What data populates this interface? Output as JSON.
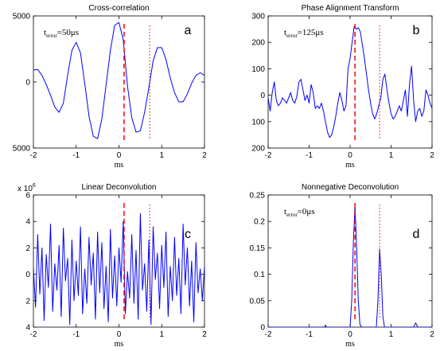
{
  "colors": {
    "signal": "#0000ff",
    "dashed_marker": "#ff0000",
    "dotted_marker": "#cc0000",
    "axis": "#000000"
  },
  "chart_data": [
    {
      "id": "a",
      "type": "line",
      "title": "Cross-correlation",
      "panel_letter": "a",
      "xlabel": "ms",
      "ylabel": "",
      "xlim": [
        -2,
        2
      ],
      "ylim": [
        -5000,
        5000
      ],
      "xticks": [
        -2,
        -1,
        0,
        1,
        2
      ],
      "yticks": [
        5000,
        0,
        -5000
      ],
      "ytick_labels": [
        "5000",
        "0",
        "5000"
      ],
      "annotation": {
        "prefix": "t",
        "sub": "error",
        "suffix": "=50μs"
      },
      "markers": {
        "dashed_x": 0.12,
        "dotted_x": 0.72
      },
      "series": [
        {
          "x": [
            -2,
            -1.9,
            -1.8,
            -1.7,
            -1.6,
            -1.5,
            -1.4,
            -1.3,
            -1.2,
            -1.1,
            -1,
            -0.9,
            -0.8,
            -0.7,
            -0.6,
            -0.5,
            -0.4,
            -0.3,
            -0.2,
            -0.1,
            0,
            0.1,
            0.2,
            0.3,
            0.4,
            0.5,
            0.6,
            0.7,
            0.8,
            0.9,
            1,
            1.1,
            1.2,
            1.3,
            1.4,
            1.5,
            1.6,
            1.7,
            1.8,
            1.9,
            2
          ],
          "y": [
            900,
            950,
            500,
            -200,
            -1000,
            -1900,
            -2300,
            -1600,
            500,
            2400,
            3000,
            2200,
            -100,
            -2600,
            -4100,
            -4300,
            -2800,
            -200,
            2400,
            4300,
            4500,
            3200,
            -300,
            -2700,
            -3800,
            -3700,
            -2300,
            -400,
            1600,
            2600,
            2600,
            1700,
            300,
            -800,
            -1500,
            -1500,
            -900,
            -100,
            500,
            700,
            500
          ]
        }
      ]
    },
    {
      "id": "b",
      "type": "line",
      "title": "Phase Alignment Transform",
      "panel_letter": "b",
      "xlabel": "ms",
      "ylabel": "",
      "xlim": [
        -2,
        2
      ],
      "ylim": [
        -200,
        300
      ],
      "xticks": [
        -2,
        -1,
        0,
        1,
        2
      ],
      "yticks": [
        300,
        200,
        100,
        0,
        -100,
        -200
      ],
      "ytick_labels": [
        "300",
        "200",
        "100",
        "0",
        "100",
        "200"
      ],
      "annotation": {
        "prefix": "t",
        "sub": "error",
        "suffix": "=125μs"
      },
      "markers": {
        "dashed_x": 0.12,
        "dotted_x": 0.72
      },
      "series": [
        {
          "x": [
            -2,
            -1.95,
            -1.9,
            -1.85,
            -1.8,
            -1.75,
            -1.7,
            -1.65,
            -1.6,
            -1.55,
            -1.5,
            -1.45,
            -1.4,
            -1.35,
            -1.3,
            -1.25,
            -1.2,
            -1.15,
            -1.1,
            -1.05,
            -1,
            -0.95,
            -0.9,
            -0.85,
            -0.8,
            -0.75,
            -0.7,
            -0.65,
            -0.6,
            -0.55,
            -0.5,
            -0.45,
            -0.4,
            -0.35,
            -0.3,
            -0.25,
            -0.2,
            -0.15,
            -0.1,
            -0.05,
            0,
            0.05,
            0.1,
            0.15,
            0.2,
            0.25,
            0.3,
            0.35,
            0.4,
            0.45,
            0.5,
            0.55,
            0.6,
            0.65,
            0.7,
            0.75,
            0.8,
            0.85,
            0.9,
            0.95,
            1,
            1.05,
            1.1,
            1.15,
            1.2,
            1.25,
            1.3,
            1.35,
            1.4,
            1.45,
            1.5,
            1.55,
            1.6,
            1.65,
            1.7,
            1.75,
            1.8,
            1.85,
            1.9,
            1.95,
            2
          ],
          "y": [
            -10,
            -60,
            10,
            50,
            -20,
            -40,
            -30,
            -10,
            -20,
            -30,
            -10,
            10,
            -20,
            -30,
            -5,
            50,
            60,
            20,
            -20,
            0,
            -30,
            40,
            10,
            -50,
            -40,
            -50,
            -30,
            -60,
            -100,
            -140,
            -160,
            -150,
            -120,
            -80,
            -30,
            10,
            -20,
            -60,
            -40,
            100,
            140,
            200,
            260,
            250,
            255,
            240,
            190,
            140,
            80,
            20,
            -30,
            -70,
            -90,
            -70,
            -40,
            -10,
            60,
            80,
            20,
            -30,
            -70,
            -90,
            -80,
            -60,
            -40,
            -60,
            -20,
            20,
            -80,
            40,
            110,
            -20,
            -100,
            -60,
            -50,
            -80,
            -60,
            20,
            0,
            -30,
            -50
          ]
        }
      ]
    },
    {
      "id": "c",
      "type": "line",
      "title": "Linear Deconvolution",
      "panel_letter": "c",
      "xlabel": "ms",
      "ylabel": "",
      "y_multiplier": "x 10",
      "y_exponent": "6",
      "xlim": [
        -2,
        2
      ],
      "ylim": [
        -4,
        6
      ],
      "xticks": [
        -2,
        -1,
        0,
        1,
        2
      ],
      "yticks": [
        6,
        4,
        2,
        0,
        -2,
        -4
      ],
      "ytick_labels": [
        "6",
        "4",
        "2",
        "0",
        "2",
        "4"
      ],
      "markers": {
        "dashed_x": 0.12,
        "dotted_x": 0.72
      },
      "series": [
        {
          "x": [
            -2,
            -1.95,
            -1.9,
            -1.85,
            -1.8,
            -1.75,
            -1.7,
            -1.65,
            -1.6,
            -1.55,
            -1.5,
            -1.45,
            -1.4,
            -1.35,
            -1.3,
            -1.25,
            -1.2,
            -1.15,
            -1.1,
            -1.05,
            -1,
            -0.95,
            -0.9,
            -0.85,
            -0.8,
            -0.75,
            -0.7,
            -0.65,
            -0.6,
            -0.55,
            -0.5,
            -0.45,
            -0.4,
            -0.35,
            -0.3,
            -0.25,
            -0.2,
            -0.15,
            -0.1,
            -0.05,
            0,
            0.05,
            0.1,
            0.15,
            0.2,
            0.25,
            0.3,
            0.35,
            0.4,
            0.45,
            0.5,
            0.55,
            0.6,
            0.65,
            0.7,
            0.75,
            0.8,
            0.85,
            0.9,
            0.95,
            1,
            1.05,
            1.1,
            1.15,
            1.2,
            1.25,
            1.3,
            1.35,
            1.4,
            1.45,
            1.5,
            1.55,
            1.6,
            1.65,
            1.7,
            1.75,
            1.8,
            1.85,
            1.9,
            1.95,
            2
          ],
          "y": [
            0.5,
            -2.5,
            3,
            -1.5,
            2,
            -3.5,
            1.5,
            -1,
            3.8,
            -2.8,
            0.8,
            -1.2,
            2.2,
            -3.2,
            3.5,
            -0.5,
            1.2,
            -3.8,
            2.6,
            -2,
            1,
            -1.6,
            3.6,
            -3,
            0.4,
            -2.2,
            2.8,
            -0.8,
            1.6,
            -3.4,
            3.2,
            -1.4,
            2.4,
            -2.6,
            0.6,
            -3.6,
            3.4,
            -1.8,
            1.4,
            -2.4,
            2,
            -0.6,
            4,
            -3,
            0.2,
            -1.8,
            3,
            -2.2,
            1.8,
            -3.4,
            4.6,
            -1.2,
            0.8,
            -2.8,
            2.6,
            -3.8,
            3.6,
            -0.4,
            1.6,
            -2.6,
            2.2,
            -1,
            3.2,
            -3.2,
            0.6,
            -2,
            2.8,
            -1.6,
            1.2,
            -3,
            3.8,
            -0.8,
            2,
            -2.4,
            1,
            -3.6,
            2.4,
            -1.4,
            0.4,
            -2,
            0.6
          ]
        }
      ]
    },
    {
      "id": "d",
      "type": "line",
      "title": "Nonnegative Deconvolution",
      "panel_letter": "d",
      "xlabel": "ms",
      "ylabel": "",
      "xlim": [
        -2,
        2
      ],
      "ylim": [
        0,
        0.25
      ],
      "xticks": [
        -2,
        -1,
        0,
        1,
        2
      ],
      "yticks": [
        0.25,
        0.2,
        0.15,
        0.1,
        0.05,
        0
      ],
      "ytick_labels": [
        "0.25",
        "0.2",
        "0.15",
        "0.1",
        "0.05",
        "0"
      ],
      "annotation": {
        "prefix": "t",
        "sub": "error",
        "suffix": "=0μs"
      },
      "markers": {
        "dashed_x": 0.12,
        "dotted_x": 0.72
      },
      "series": [
        {
          "x": [
            -2,
            -1.5,
            -1,
            -0.62,
            -0.6,
            -0.58,
            -0.2,
            0,
            0.04,
            0.08,
            0.12,
            0.16,
            0.2,
            0.24,
            0.28,
            0.5,
            0.64,
            0.68,
            0.72,
            0.76,
            0.8,
            0.84,
            1,
            1.2,
            1.55,
            1.6,
            1.65,
            2
          ],
          "y": [
            0,
            0,
            0,
            0,
            0.004,
            0,
            0,
            0,
            0.05,
            0.16,
            0.23,
            0.15,
            0.05,
            0.005,
            0,
            0,
            0,
            0.05,
            0.148,
            0.1,
            0.02,
            0,
            0,
            0,
            0,
            0.008,
            0,
            0
          ]
        }
      ]
    }
  ]
}
